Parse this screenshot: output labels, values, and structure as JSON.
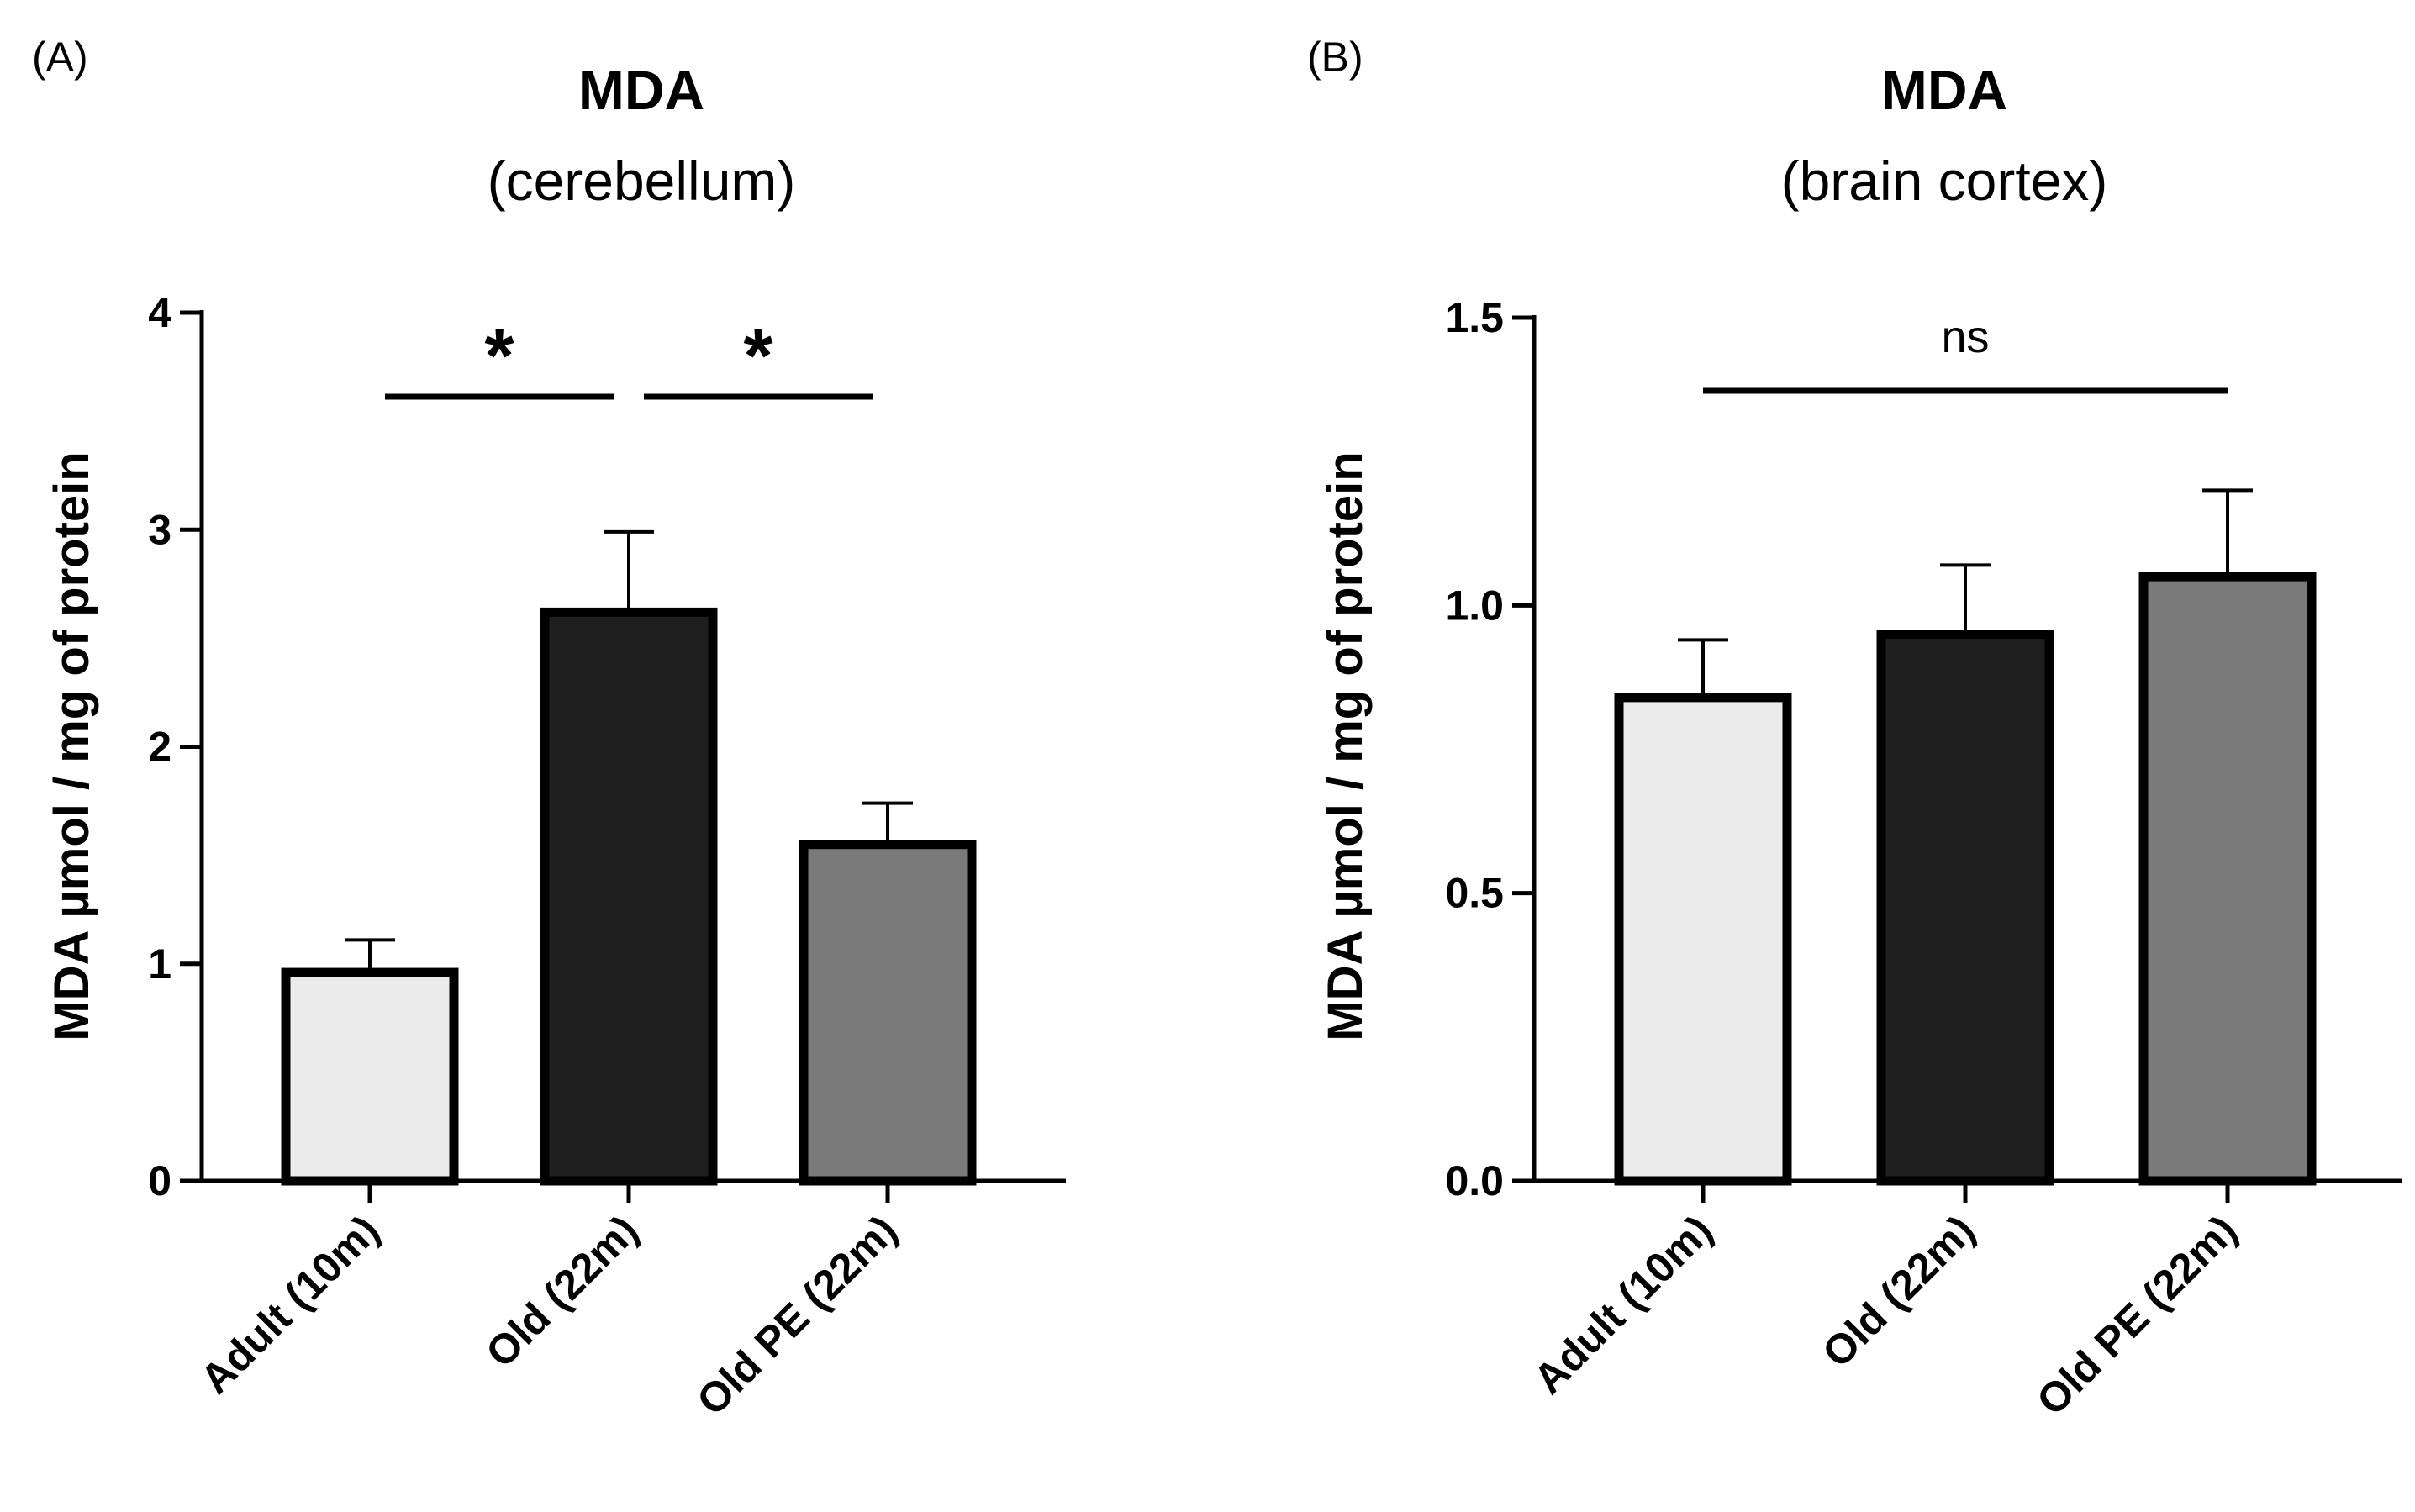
{
  "chart_data": [
    {
      "type": "bar",
      "panel_label": "(A)",
      "title": "MDA",
      "subtitle": "(cerebellum)",
      "xlabel": "",
      "ylabel": "MDA µmol / mg of protein",
      "categories": [
        "Adult (10m)",
        "Old (22m)",
        "Old PE (22m)"
      ],
      "values": [
        0.96,
        2.62,
        1.55
      ],
      "errors": [
        0.15,
        0.37,
        0.19
      ],
      "colors": [
        "#ebebeb",
        "#1e1e1e",
        "#7a7a7a"
      ],
      "ylim": [
        0,
        4
      ],
      "yticks": [
        0,
        1,
        2,
        3,
        4
      ],
      "ytick_labels": [
        "0",
        "1",
        "2",
        "3",
        "4"
      ],
      "grid": false,
      "annotations": [
        {
          "from": 0,
          "to": 1,
          "text": "*"
        },
        {
          "from": 1,
          "to": 2,
          "text": "*"
        }
      ]
    },
    {
      "type": "bar",
      "panel_label": "(B)",
      "title": "MDA",
      "subtitle": "(brain cortex)",
      "xlabel": "",
      "ylabel": "MDA µmol / mg of protein",
      "categories": [
        "Adult (10m)",
        "Old (22m)",
        "Old PE (22m)"
      ],
      "values": [
        0.84,
        0.95,
        1.05
      ],
      "errors": [
        0.1,
        0.12,
        0.15
      ],
      "colors": [
        "#ebebeb",
        "#1e1e1e",
        "#7a7a7a"
      ],
      "ylim": [
        0,
        1.5
      ],
      "yticks": [
        0,
        0.5,
        1.0,
        1.5
      ],
      "ytick_labels": [
        "0.0",
        "0.5",
        "1.0",
        "1.5"
      ],
      "grid": false,
      "annotations": [
        {
          "from": 0,
          "to": 2,
          "text": "ns"
        }
      ]
    }
  ]
}
